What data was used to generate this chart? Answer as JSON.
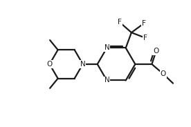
{
  "background_color": "#ffffff",
  "line_color": "#1a1a1a",
  "line_width": 1.6,
  "font_size": 7.5,
  "figsize": [
    2.76,
    1.84
  ],
  "dpi": 100,
  "xlim": [
    0,
    10
  ],
  "ylim": [
    0,
    6.67
  ]
}
